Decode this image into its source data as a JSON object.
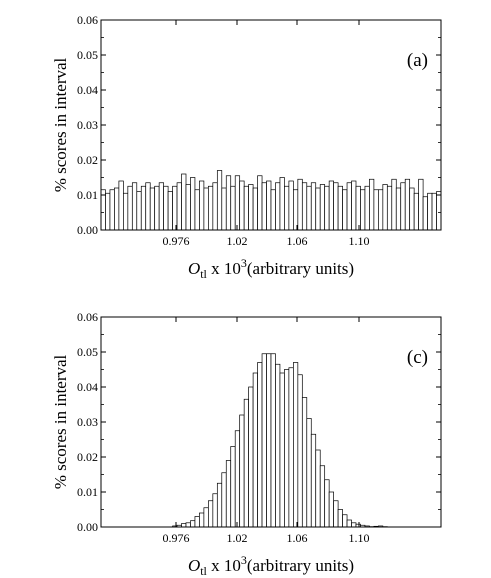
{
  "chart_data": [
    {
      "type": "bar",
      "panel_label": "(a)",
      "ylabel": "% scores in interval",
      "xlabel_parts": {
        "symbol": "O",
        "subscript": "tl",
        "mid": " x 10",
        "superscript": "3",
        "unit": "(arbitrary units)"
      },
      "x_tick_labels": [
        "0.976",
        "1.02",
        "1.06",
        "1.10"
      ],
      "y_tick_labels": [
        "0.00",
        "0.01",
        "0.02",
        "0.03",
        "0.04",
        "0.05",
        "0.06"
      ],
      "ylim": [
        0,
        0.06
      ],
      "grid": false,
      "bin_values": [
        0.0115,
        0.0105,
        0.0115,
        0.012,
        0.014,
        0.0105,
        0.0125,
        0.0135,
        0.011,
        0.0125,
        0.0135,
        0.012,
        0.0125,
        0.0135,
        0.0125,
        0.011,
        0.0125,
        0.0135,
        0.016,
        0.013,
        0.015,
        0.0115,
        0.014,
        0.012,
        0.0125,
        0.0135,
        0.017,
        0.012,
        0.0155,
        0.0125,
        0.0155,
        0.014,
        0.0125,
        0.013,
        0.012,
        0.0155,
        0.0135,
        0.014,
        0.0115,
        0.0135,
        0.015,
        0.0125,
        0.014,
        0.0115,
        0.0145,
        0.0135,
        0.0125,
        0.0135,
        0.012,
        0.013,
        0.0125,
        0.014,
        0.0135,
        0.0125,
        0.0115,
        0.0135,
        0.014,
        0.0125,
        0.0115,
        0.0125,
        0.0145,
        0.0115,
        0.0115,
        0.013,
        0.0125,
        0.0145,
        0.012,
        0.0135,
        0.0145,
        0.012,
        0.0105,
        0.0145,
        0.0095,
        0.0105,
        0.0105,
        0.011
      ]
    },
    {
      "type": "bar",
      "panel_label": "(c)",
      "ylabel": "% scores in interval",
      "xlabel_parts": {
        "symbol": "O",
        "subscript": "tl",
        "mid": " x 10",
        "superscript": "3",
        "unit": "(arbitrary units)"
      },
      "x_tick_labels": [
        "0.976",
        "1.02",
        "1.06",
        "1.10"
      ],
      "y_tick_labels": [
        "0.00",
        "0.01",
        "0.02",
        "0.03",
        "0.04",
        "0.05",
        "0.06"
      ],
      "ylim": [
        0,
        0.06
      ],
      "grid": false,
      "bin_values": [
        0,
        0,
        0,
        0,
        0,
        0,
        0,
        0,
        0,
        0,
        0,
        0,
        0,
        0,
        0,
        0,
        0.0003,
        0.0005,
        0.001,
        0.0012,
        0.0018,
        0.003,
        0.004,
        0.0055,
        0.0075,
        0.0095,
        0.0125,
        0.0155,
        0.019,
        0.023,
        0.0275,
        0.032,
        0.0365,
        0.04,
        0.044,
        0.047,
        0.0495,
        0.0495,
        0.0495,
        0.0465,
        0.044,
        0.045,
        0.0455,
        0.047,
        0.0435,
        0.037,
        0.031,
        0.0265,
        0.022,
        0.0175,
        0.0135,
        0.01,
        0.0075,
        0.005,
        0.0035,
        0.002,
        0.0012,
        0.0008,
        0.0005,
        0.0003,
        0.0001,
        0.0002,
        0.0003,
        0.0001,
        0,
        0,
        0,
        0,
        0,
        0,
        0,
        0,
        0,
        0,
        0,
        0
      ]
    }
  ]
}
